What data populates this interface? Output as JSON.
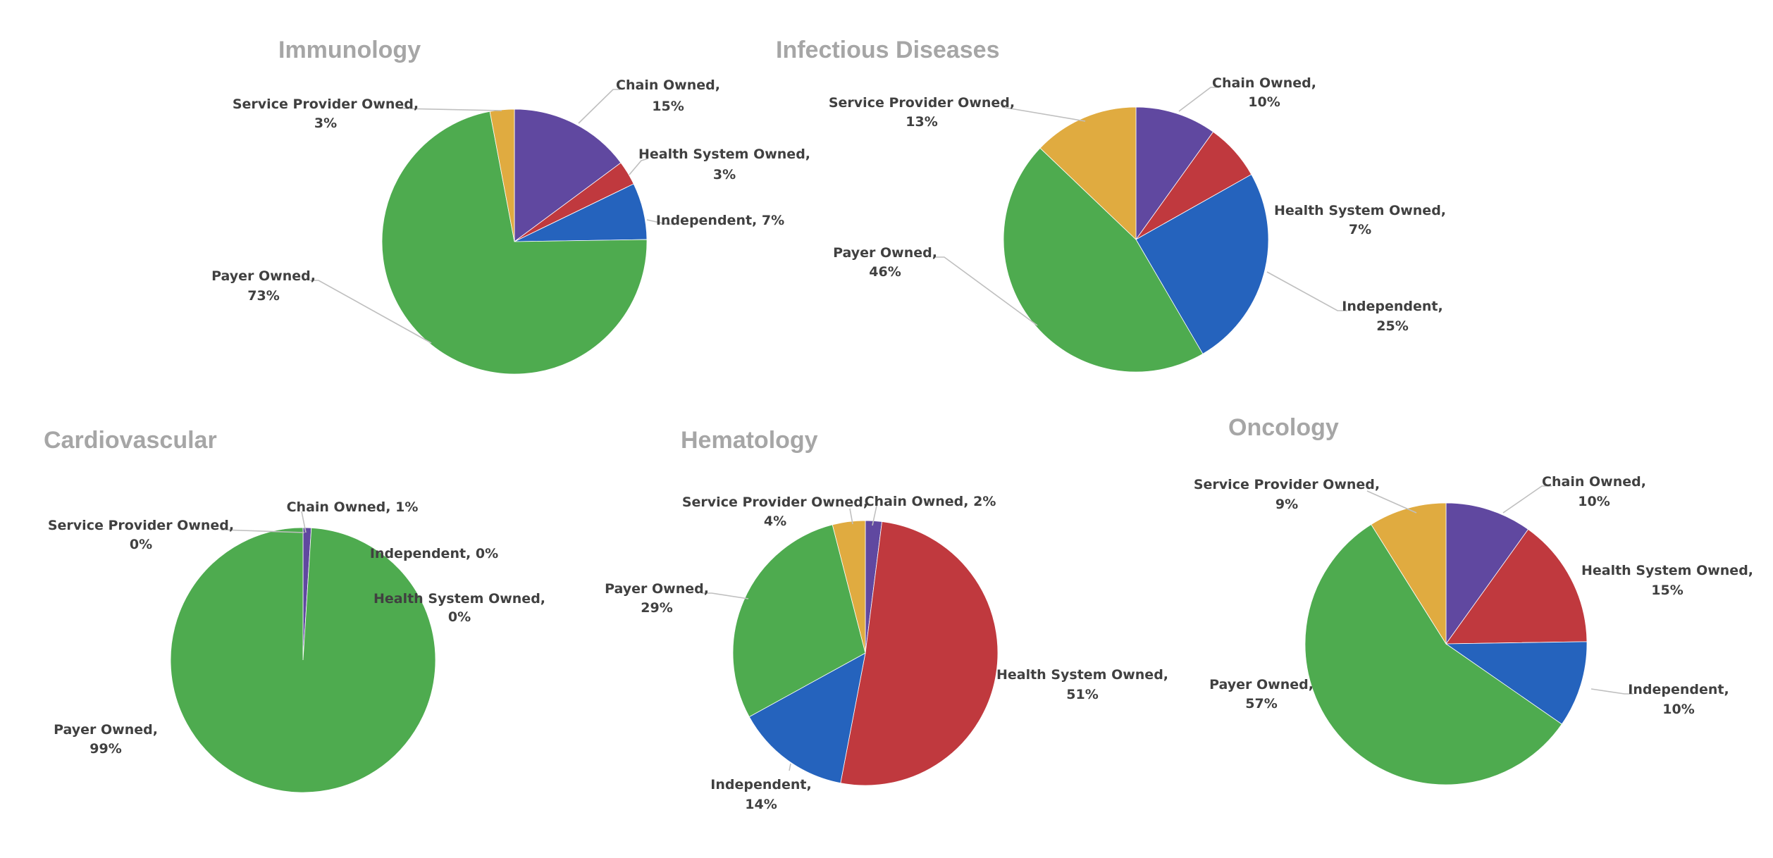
{
  "colors": {
    "Chain Owned": "#6048a0",
    "Health System Owned": "#c0393e",
    "Independent": "#2563bd",
    "Payer Owned": "#4eab4f",
    "Service Provider Owned": "#e0ab40"
  },
  "chart_data": [
    {
      "type": "pie",
      "title": "Immunology",
      "slices": [
        {
          "name": "Chain Owned",
          "value": 15,
          "label": "Chain Owned,",
          "pct": "15%"
        },
        {
          "name": "Health System Owned",
          "value": 3,
          "label": "Health System Owned,",
          "pct": "3%"
        },
        {
          "name": "Independent",
          "value": 7,
          "label": "Independent,",
          "pct": "7%"
        },
        {
          "name": "Payer Owned",
          "value": 73,
          "label": "Payer Owned,",
          "pct": "73%"
        },
        {
          "name": "Service Provider Owned",
          "value": 3,
          "label": "Service Provider Owned,",
          "pct": "3%"
        }
      ]
    },
    {
      "type": "pie",
      "title": "Infectious Diseases",
      "slices": [
        {
          "name": "Chain Owned",
          "value": 10,
          "label": "Chain Owned,",
          "pct": "10%"
        },
        {
          "name": "Health System Owned",
          "value": 7,
          "label": "Health System Owned,",
          "pct": "7%"
        },
        {
          "name": "Independent",
          "value": 25,
          "label": "Independent,",
          "pct": "25%"
        },
        {
          "name": "Payer Owned",
          "value": 46,
          "label": "Payer Owned,",
          "pct": "46%"
        },
        {
          "name": "Service Provider Owned",
          "value": 13,
          "label": "Service Provider Owned,",
          "pct": "13%"
        }
      ]
    },
    {
      "type": "pie",
      "title": "Cardiovascular",
      "slices": [
        {
          "name": "Chain Owned",
          "value": 1,
          "label": "Chain Owned,",
          "pct": "1%"
        },
        {
          "name": "Health System Owned",
          "value": 0,
          "label": "Health System Owned,",
          "pct": "0%"
        },
        {
          "name": "Independent",
          "value": 0,
          "label": "Independent,",
          "pct": "0%"
        },
        {
          "name": "Payer Owned",
          "value": 99,
          "label": "Payer Owned,",
          "pct": "99%"
        },
        {
          "name": "Service Provider Owned",
          "value": 0,
          "label": "Service Provider Owned,",
          "pct": "0%"
        }
      ]
    },
    {
      "type": "pie",
      "title": "Hematology",
      "slices": [
        {
          "name": "Chain Owned",
          "value": 2,
          "label": "Chain Owned,",
          "pct": "2%"
        },
        {
          "name": "Health System Owned",
          "value": 51,
          "label": "Health System Owned,",
          "pct": "51%"
        },
        {
          "name": "Independent",
          "value": 14,
          "label": "Independent,",
          "pct": "14%"
        },
        {
          "name": "Payer Owned",
          "value": 29,
          "label": "Payer Owned,",
          "pct": "29%"
        },
        {
          "name": "Service Provider Owned",
          "value": 4,
          "label": "Service Provider Owned,",
          "pct": "4%"
        }
      ]
    },
    {
      "type": "pie",
      "title": "Oncology",
      "slices": [
        {
          "name": "Chain Owned",
          "value": 10,
          "label": "Chain Owned,",
          "pct": "10%"
        },
        {
          "name": "Health System Owned",
          "value": 15,
          "label": "Health System Owned,",
          "pct": "15%"
        },
        {
          "name": "Independent",
          "value": 10,
          "label": "Independent,",
          "pct": "10%"
        },
        {
          "name": "Payer Owned",
          "value": 57,
          "label": "Payer Owned,",
          "pct": "57%"
        },
        {
          "name": "Service Provider Owned",
          "value": 9,
          "label": "Service Provider Owned,",
          "pct": "9%"
        }
      ]
    }
  ]
}
